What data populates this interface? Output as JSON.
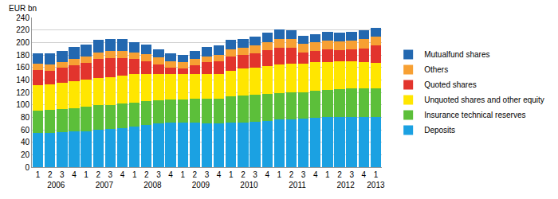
{
  "chart_data": {
    "type": "bar",
    "stacked": true,
    "ylabel": "EUR bn",
    "categories": [
      "1",
      "2",
      "3",
      "4",
      "1",
      "2",
      "3",
      "4",
      "1",
      "2",
      "3",
      "4",
      "1",
      "2",
      "3",
      "4",
      "1",
      "2",
      "3",
      "4",
      "1",
      "2",
      "3",
      "4",
      "1",
      "2",
      "3",
      "4",
      "1"
    ],
    "category_groups": [
      "2006",
      "2006",
      "2006",
      "2006",
      "2007",
      "2007",
      "2007",
      "2007",
      "2008",
      "2008",
      "2008",
      "2008",
      "2009",
      "2009",
      "2009",
      "2009",
      "2010",
      "2010",
      "2010",
      "2010",
      "2011",
      "2011",
      "2011",
      "2011",
      "2012",
      "2012",
      "2012",
      "2012",
      "2013"
    ],
    "ylim": [
      0,
      240
    ],
    "yticks": [
      0,
      20,
      40,
      60,
      80,
      100,
      120,
      140,
      160,
      180,
      200,
      220,
      240
    ],
    "grid": true,
    "legend": "right",
    "series": [
      {
        "name": "Deposits",
        "color": "#1ba1e2",
        "values": [
          55,
          55,
          56,
          57,
          58,
          60,
          61,
          63,
          65,
          68,
          70,
          71,
          71,
          71,
          70,
          70,
          71,
          72,
          73,
          74,
          76,
          77,
          78,
          79,
          80,
          81,
          81,
          80,
          81
        ]
      },
      {
        "name": "Insurance technical reserves",
        "color": "#5cbf3a",
        "values": [
          36,
          37,
          37,
          38,
          39,
          39,
          39,
          39,
          39,
          38,
          37,
          37,
          38,
          39,
          40,
          40,
          42,
          43,
          43,
          43,
          43,
          43,
          42,
          43,
          44,
          44,
          45,
          46,
          46
        ]
      },
      {
        "name": "Unquoted shares and other equity",
        "color": "#ffe600",
        "values": [
          40,
          41,
          42,
          43,
          43,
          44,
          44,
          45,
          45,
          44,
          43,
          42,
          40,
          40,
          40,
          40,
          42,
          43,
          44,
          45,
          46,
          46,
          46,
          46,
          45,
          45,
          44,
          43,
          40
        ]
      },
      {
        "name": "Quoted shares",
        "color": "#e2342d",
        "values": [
          25,
          22,
          24,
          25,
          27,
          30,
          31,
          28,
          24,
          20,
          15,
          10,
          9,
          13,
          18,
          20,
          22,
          22,
          22,
          26,
          27,
          25,
          18,
          18,
          20,
          18,
          19,
          21,
          28
        ]
      },
      {
        "name": "Others",
        "color": "#f7a033",
        "values": [
          10,
          10,
          10,
          11,
          11,
          11,
          11,
          11,
          11,
          11,
          11,
          10,
          10,
          10,
          10,
          10,
          12,
          12,
          13,
          13,
          14,
          14,
          14,
          14,
          14,
          14,
          14,
          15,
          15
        ]
      },
      {
        "name": "Mutualfund shares",
        "color": "#2368b0",
        "values": [
          17,
          17,
          18,
          19,
          19,
          20,
          20,
          19,
          17,
          16,
          13,
          12,
          12,
          14,
          15,
          15,
          15,
          14,
          14,
          15,
          15,
          15,
          13,
          13,
          14,
          14,
          14,
          14,
          14
        ]
      }
    ]
  }
}
